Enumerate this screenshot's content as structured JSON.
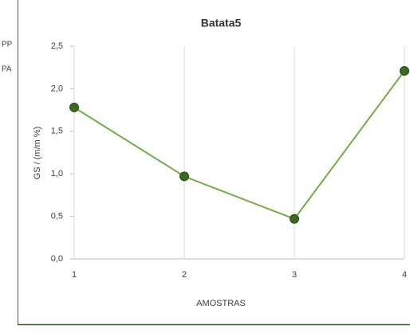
{
  "side_labels": [
    "PP",
    "PA"
  ],
  "chart_data": {
    "type": "line",
    "title": "Batata5",
    "x_label": "AMOSTRAS",
    "y_label": "GS / (m/m %)",
    "x": [
      1,
      2,
      3,
      4
    ],
    "series": [
      {
        "name": "Batata5",
        "color": "#70ad47",
        "marker_color": "#3b6a1c",
        "values": [
          1.78,
          0.97,
          0.47,
          2.21
        ]
      }
    ],
    "xlim": [
      1,
      4
    ],
    "xticks": [
      1,
      2,
      3,
      4
    ],
    "ylim": [
      0,
      2.5
    ],
    "yticks": [
      {
        "value": 0,
        "label": "0,0"
      },
      {
        "value": 0.5,
        "label": "0,5"
      },
      {
        "value": 1,
        "label": "1,0"
      },
      {
        "value": 1.5,
        "label": "1,5"
      },
      {
        "value": 2,
        "label": "2,0"
      },
      {
        "value": 2.5,
        "label": "2,5"
      }
    ],
    "grid": "x"
  }
}
